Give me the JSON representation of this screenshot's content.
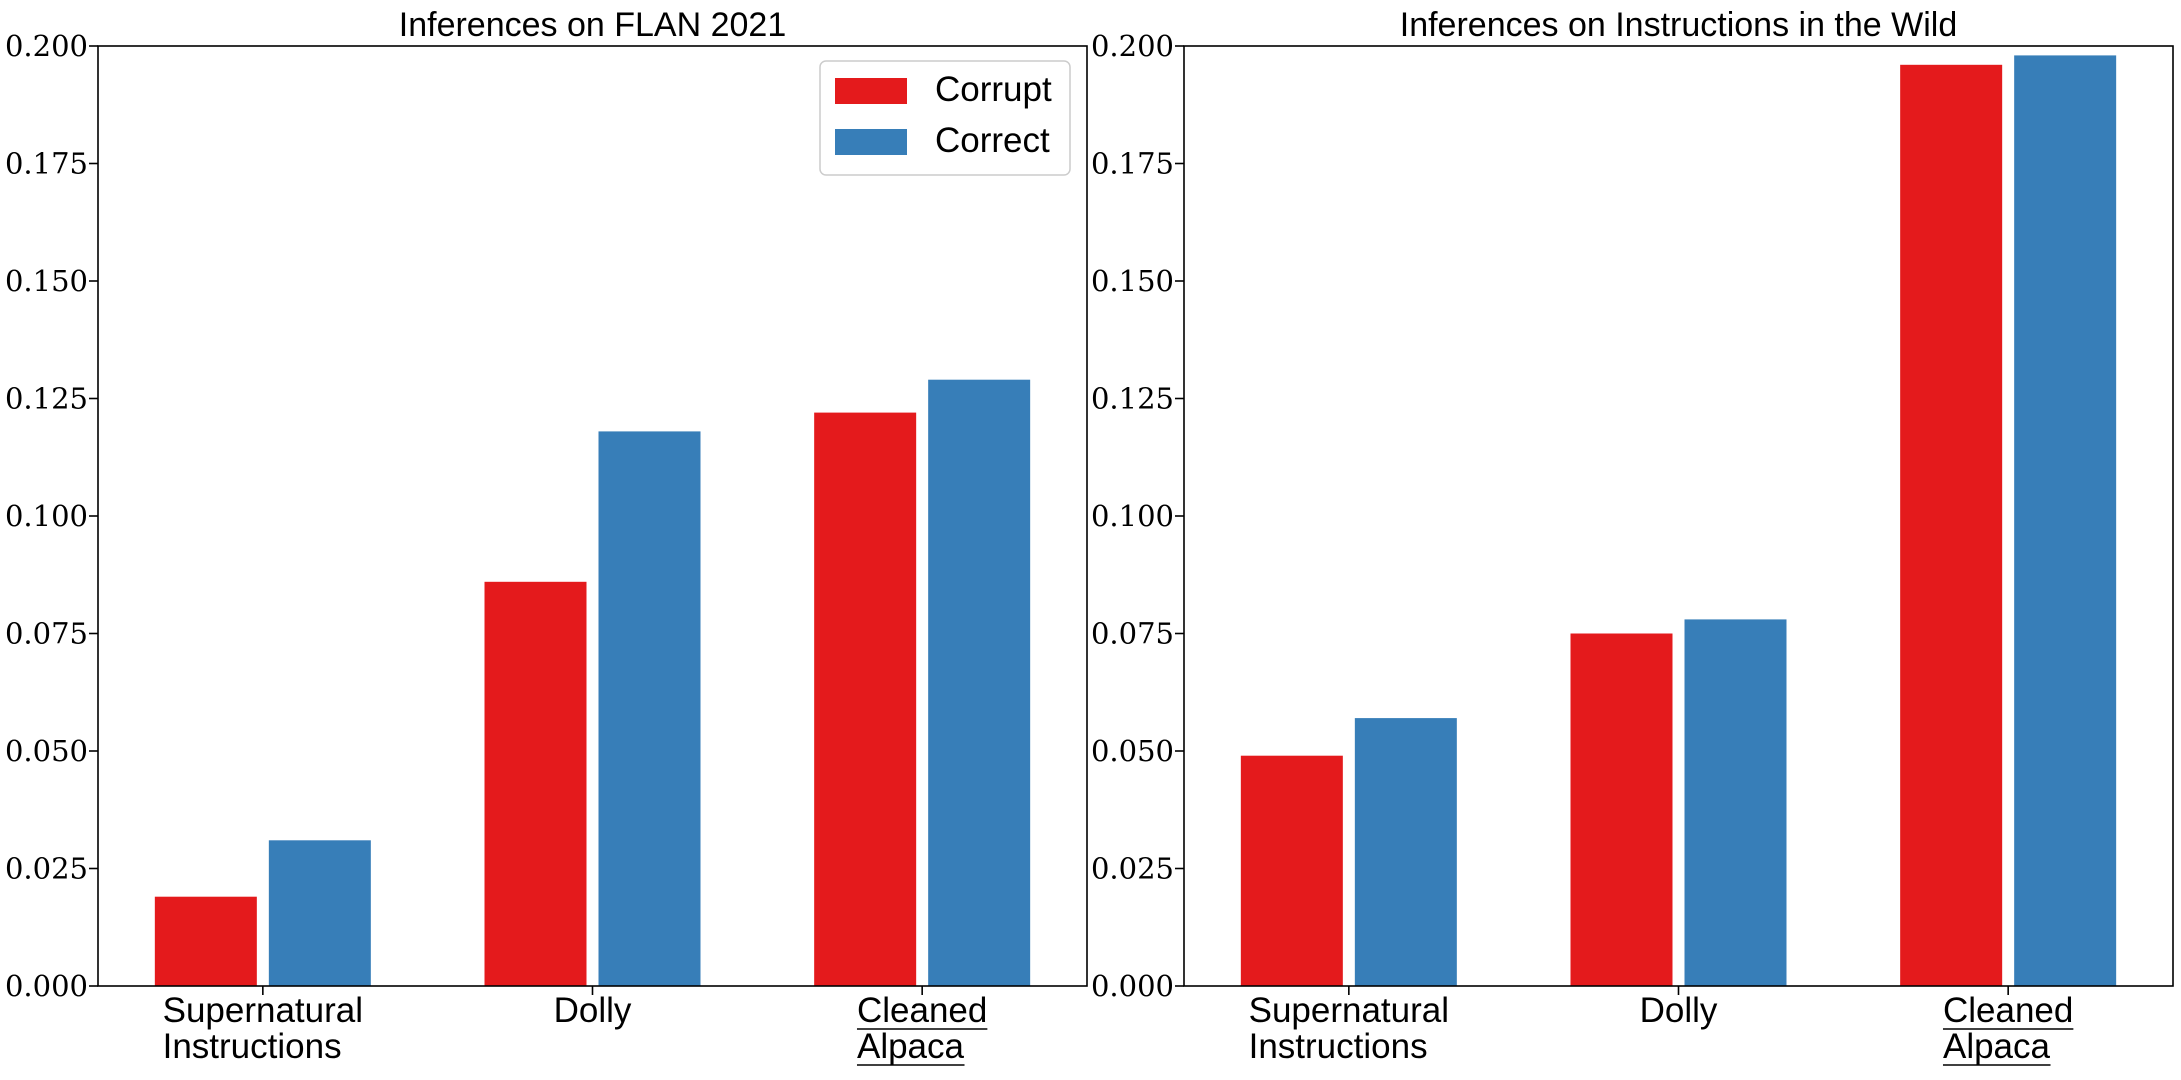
{
  "chart_data": [
    {
      "type": "bar",
      "title": "Inferences on FLAN 2021",
      "categories": [
        [
          "Supernatural",
          "Instructions"
        ],
        [
          "Dolly"
        ],
        [
          "Cleaned",
          "Alpaca"
        ]
      ],
      "underlined_categories": [
        2
      ],
      "series": [
        {
          "name": "Corrupt",
          "color": "#e41a1c",
          "values": [
            0.019,
            0.086,
            0.122
          ]
        },
        {
          "name": "Correct",
          "color": "#377eb8",
          "values": [
            0.031,
            0.118,
            0.129
          ]
        }
      ],
      "ylim": [
        0,
        0.2
      ],
      "yticks": [
        "0.000",
        "0.025",
        "0.050",
        "0.075",
        "0.100",
        "0.125",
        "0.150",
        "0.175",
        "0.200"
      ],
      "legend": "upper-right",
      "grid": false
    },
    {
      "type": "bar",
      "title": "Inferences on Instructions in the Wild",
      "categories": [
        [
          "Supernatural",
          "Instructions"
        ],
        [
          "Dolly"
        ],
        [
          "Cleaned",
          "Alpaca"
        ]
      ],
      "underlined_categories": [
        2
      ],
      "series": [
        {
          "name": "Corrupt",
          "color": "#e41a1c",
          "values": [
            0.049,
            0.075,
            0.196
          ]
        },
        {
          "name": "Correct",
          "color": "#377eb8",
          "values": [
            0.057,
            0.078,
            0.198
          ]
        }
      ],
      "ylim": [
        0,
        0.2
      ],
      "yticks": [
        "0.000",
        "0.025",
        "0.050",
        "0.075",
        "0.100",
        "0.125",
        "0.150",
        "0.175",
        "0.200"
      ],
      "legend": "none",
      "grid": false
    }
  ]
}
